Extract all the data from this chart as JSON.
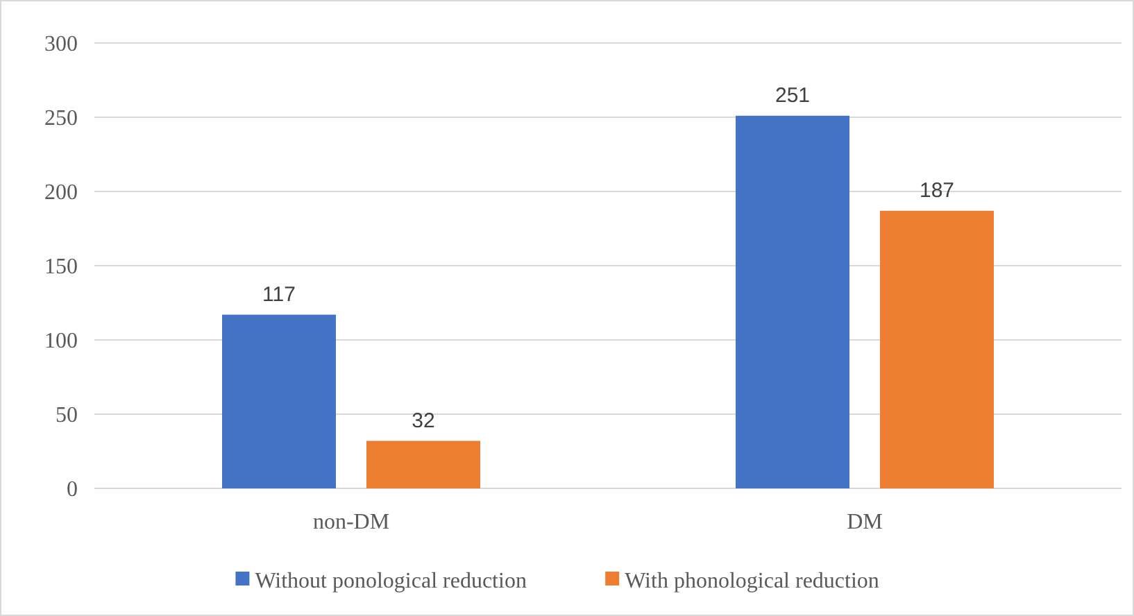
{
  "chart_data": {
    "type": "bar",
    "categories": [
      "non-DM",
      "DM"
    ],
    "series": [
      {
        "name": "Without ponological reduction",
        "color": "#4472c4",
        "values": [
          117,
          251
        ]
      },
      {
        "name": "With phonological reduction",
        "color": "#ed7d31",
        "values": [
          32,
          187
        ]
      }
    ],
    "ylim": [
      0,
      300
    ],
    "yticks": [
      0,
      50,
      100,
      150,
      200,
      250,
      300
    ],
    "grid": "y",
    "data_labels": true,
    "legend": "bottom"
  }
}
